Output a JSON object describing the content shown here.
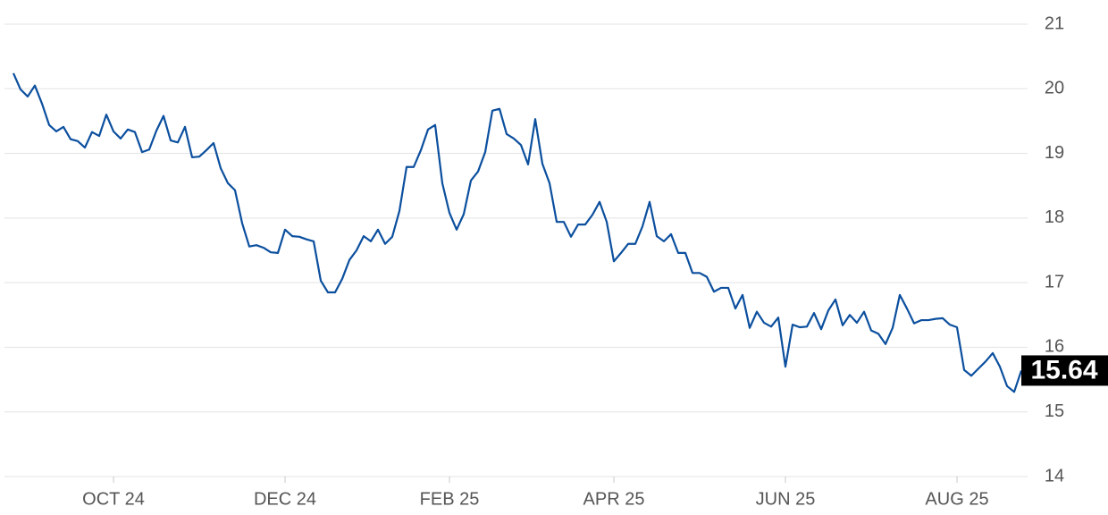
{
  "chart_data": {
    "type": "line",
    "categories": [
      null,
      null,
      null,
      null,
      null,
      null,
      null,
      null,
      null,
      null,
      null,
      null,
      null,
      null,
      "OCT 24",
      null,
      null,
      null,
      null,
      null,
      null,
      null,
      null,
      null,
      null,
      null,
      null,
      null,
      null,
      null,
      null,
      null,
      null,
      null,
      null,
      null,
      null,
      null,
      "DEC 24",
      null,
      null,
      null,
      null,
      null,
      null,
      null,
      null,
      null,
      null,
      null,
      null,
      null,
      null,
      null,
      null,
      null,
      null,
      null,
      null,
      null,
      null,
      "FEB 25",
      null,
      null,
      null,
      null,
      null,
      null,
      null,
      null,
      null,
      null,
      null,
      null,
      null,
      null,
      null,
      null,
      null,
      null,
      null,
      null,
      null,
      null,
      "APR 25",
      null,
      null,
      null,
      null,
      null,
      null,
      null,
      null,
      null,
      null,
      null,
      null,
      null,
      null,
      null,
      null,
      null,
      null,
      null,
      null,
      null,
      null,
      null,
      "JUN 25",
      null,
      null,
      null,
      null,
      null,
      null,
      null,
      null,
      null,
      null,
      null,
      null,
      null,
      null,
      null,
      null,
      null,
      null,
      null,
      null,
      null,
      null,
      null,
      "AUG 25",
      null,
      null,
      null,
      null,
      null,
      null,
      null,
      null,
      null
    ],
    "values": [
      20.24,
      19.99,
      19.88,
      20.05,
      19.77,
      19.44,
      19.34,
      19.41,
      19.22,
      19.19,
      19.09,
      19.33,
      19.27,
      19.6,
      19.34,
      19.23,
      19.37,
      19.33,
      19.02,
      19.06,
      19.35,
      19.58,
      19.2,
      19.17,
      19.41,
      18.94,
      18.95,
      19.05,
      19.16,
      18.77,
      18.54,
      18.43,
      17.92,
      17.56,
      17.58,
      17.54,
      17.47,
      17.46,
      17.82,
      17.72,
      17.71,
      17.67,
      17.64,
      17.03,
      16.85,
      16.85,
      17.06,
      17.35,
      17.5,
      17.72,
      17.64,
      17.82,
      17.6,
      17.71,
      18.11,
      18.79,
      18.79,
      19.05,
      19.37,
      19.44,
      18.54,
      18.08,
      17.82,
      18.06,
      18.58,
      18.72,
      19.02,
      19.66,
      19.69,
      19.3,
      19.23,
      19.13,
      18.83,
      19.53,
      18.84,
      18.54,
      17.94,
      17.94,
      17.71,
      17.9,
      17.9,
      18.05,
      18.25,
      17.94,
      17.33,
      17.46,
      17.6,
      17.6,
      17.87,
      18.25,
      17.72,
      17.64,
      17.75,
      17.46,
      17.46,
      17.15,
      17.15,
      17.09,
      16.86,
      16.92,
      16.92,
      16.6,
      16.81,
      16.3,
      16.55,
      16.38,
      16.32,
      16.46,
      15.7,
      16.35,
      16.31,
      16.32,
      16.53,
      16.28,
      16.57,
      16.74,
      16.34,
      16.5,
      16.38,
      16.55,
      16.26,
      16.21,
      16.05,
      16.3,
      16.81,
      16.6,
      16.37,
      16.42,
      16.42,
      16.44,
      16.45,
      16.35,
      16.31,
      15.65,
      15.56,
      15.67,
      15.78,
      15.91,
      15.7,
      15.4,
      15.31,
      15.64
    ],
    "color": "#0b4f9e",
    "ylim": [
      14,
      21
    ],
    "yticks": [
      14,
      15,
      16,
      17,
      18,
      19,
      20,
      21
    ],
    "grid": true
  }
}
